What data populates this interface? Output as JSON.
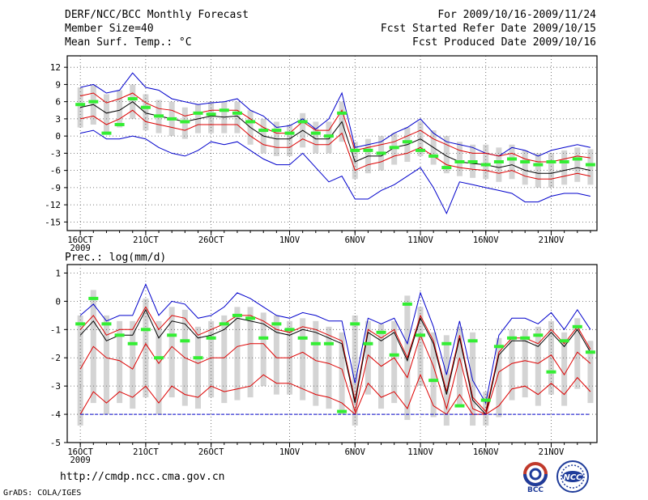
{
  "header": {
    "title": "DERF/NCC/BCC Monthly Forecast",
    "member_size": "Member Size=40",
    "variable": "Mean Surf. Temp.: °C",
    "period": "For 2009/10/16-2009/11/24",
    "fcst_started": "Fcst Started Refer Date 2009/10/15",
    "fcst_produced": "Fcst Produced Date 2009/10/16"
  },
  "footer": {
    "url": "http://cmdp.ncc.cma.gov.cn",
    "grads": "GrADS: COLA/IGES",
    "logo1_text": "BCC",
    "logo2_text": "NCC"
  },
  "colors": {
    "max_min": "#0000cc",
    "percentile": "#dd0000",
    "mean": "#000000",
    "observed": "#33ee33",
    "box": "#d4d4d4",
    "grid": "#555555"
  },
  "chart_data": [
    {
      "type": "line",
      "title": "Mean Surf. Temp.: °C",
      "x_tick_labels": [
        "16OCT",
        "21OCT",
        "26OCT",
        "1NOV",
        "6NOV",
        "11NOV",
        "16NOV",
        "21NOV"
      ],
      "x_tick_days": [
        1,
        6,
        11,
        17,
        22,
        27,
        32,
        37
      ],
      "x_year_label": "2009",
      "y_ticks": [
        12,
        9,
        6,
        3,
        0,
        -3,
        -6,
        -9,
        -12,
        -15
      ],
      "ylim": [
        -16.5,
        14
      ],
      "xlim": [
        0,
        40.5
      ],
      "days": [
        1,
        2,
        3,
        4,
        5,
        6,
        7,
        8,
        9,
        10,
        11,
        12,
        13,
        14,
        15,
        16,
        17,
        18,
        19,
        20,
        21,
        22,
        23,
        24,
        25,
        26,
        27,
        28,
        29,
        30,
        31,
        32,
        33,
        34,
        35,
        36,
        37,
        38,
        39,
        40
      ],
      "series": [
        {
          "name": "max",
          "values": [
            8.5,
            9.0,
            7.5,
            8.0,
            11.0,
            8.5,
            8.0,
            6.5,
            6.0,
            5.5,
            5.8,
            6.0,
            6.5,
            4.5,
            3.5,
            1.5,
            1.8,
            3.0,
            1.2,
            3.0,
            7.5,
            -2.0,
            -1.5,
            -1.0,
            0.5,
            1.5,
            3.0,
            0.5,
            -1.0,
            -1.5,
            -2.0,
            -3.0,
            -3.5,
            -2.0,
            -2.5,
            -3.5,
            -2.5,
            -2.0,
            -1.5,
            -2.0
          ]
        },
        {
          "name": "p90",
          "values": [
            7.0,
            7.5,
            5.8,
            6.5,
            7.5,
            5.8,
            4.8,
            4.5,
            3.5,
            4.0,
            4.5,
            4.5,
            4.5,
            3.0,
            1.5,
            0.5,
            0.5,
            2.5,
            1.0,
            1.0,
            4.5,
            -2.5,
            -2.0,
            -1.5,
            -1.0,
            0.0,
            1.0,
            -0.5,
            -1.5,
            -2.5,
            -3.0,
            -3.0,
            -3.5,
            -3.0,
            -4.0,
            -4.5,
            -4.5,
            -4.0,
            -3.5,
            -3.8
          ]
        },
        {
          "name": "mean",
          "values": [
            5.0,
            5.5,
            4.0,
            4.5,
            6.0,
            4.0,
            3.5,
            3.0,
            2.5,
            3.0,
            3.5,
            3.3,
            3.5,
            1.5,
            0.0,
            -0.5,
            -0.5,
            1.0,
            -0.5,
            -0.5,
            2.5,
            -4.5,
            -3.5,
            -3.5,
            -2.0,
            -1.5,
            -0.5,
            -2.0,
            -3.5,
            -4.5,
            -4.8,
            -5.0,
            -5.5,
            -5.0,
            -6.0,
            -6.5,
            -6.5,
            -6.0,
            -5.5,
            -6.0
          ]
        },
        {
          "name": "p10",
          "values": [
            3.0,
            3.5,
            2.0,
            3.0,
            4.5,
            2.5,
            2.0,
            1.5,
            1.0,
            2.0,
            2.0,
            2.0,
            2.0,
            0.0,
            -1.5,
            -2.0,
            -2.0,
            -0.5,
            -1.5,
            -1.5,
            0.5,
            -6.0,
            -5.0,
            -4.5,
            -3.5,
            -3.0,
            -2.0,
            -3.5,
            -5.0,
            -5.5,
            -5.8,
            -6.0,
            -6.5,
            -6.0,
            -7.0,
            -7.5,
            -7.5,
            -7.0,
            -6.5,
            -7.0
          ]
        },
        {
          "name": "min",
          "values": [
            0.5,
            1.0,
            -0.5,
            -0.5,
            0.0,
            -0.5,
            -2.0,
            -3.0,
            -3.5,
            -2.5,
            -1.0,
            -1.5,
            -1.0,
            -2.5,
            -4.0,
            -5.0,
            -5.0,
            -3.0,
            -5.5,
            -8.0,
            -7.0,
            -11.0,
            -11.0,
            -9.5,
            -8.5,
            -7.0,
            -5.5,
            -9.0,
            -13.5,
            -8.0,
            -8.5,
            -9.0,
            -9.5,
            -10.0,
            -11.5,
            -11.5,
            -10.5,
            -10.0,
            -10.0,
            -10.5
          ]
        },
        {
          "name": "observed",
          "values": [
            5.5,
            6.0,
            0.5,
            2.0,
            6.5,
            5.0,
            3.5,
            3.0,
            2.5,
            4.0,
            3.8,
            4.5,
            4.0,
            2.5,
            1.0,
            1.0,
            0.5,
            2.5,
            0.5,
            0.0,
            4.0,
            -2.5,
            -2.5,
            -3.0,
            -2.0,
            -1.0,
            -2.5,
            -3.5,
            -5.5,
            -4.5,
            -4.5,
            -5.0,
            -4.5,
            -4.0,
            -4.5,
            -5.0,
            -4.5,
            -4.5,
            -4.0,
            -5.0
          ]
        }
      ]
    },
    {
      "type": "line",
      "title": "Prec.: log(mm/d)",
      "x_tick_labels": [
        "16OCT",
        "21OCT",
        "26OCT",
        "1NOV",
        "6NOV",
        "11NOV",
        "16NOV",
        "21NOV"
      ],
      "x_tick_days": [
        1,
        6,
        11,
        17,
        22,
        27,
        32,
        37
      ],
      "x_year_label": "2009",
      "y_ticks": [
        1,
        0,
        -1,
        -2,
        -3,
        -4,
        -5
      ],
      "ylim": [
        -5,
        1.3
      ],
      "xlim": [
        0,
        40.5
      ],
      "days": [
        1,
        2,
        3,
        4,
        5,
        6,
        7,
        8,
        9,
        10,
        11,
        12,
        13,
        14,
        15,
        16,
        17,
        18,
        19,
        20,
        21,
        22,
        23,
        24,
        25,
        26,
        27,
        28,
        29,
        30,
        31,
        32,
        33,
        34,
        35,
        36,
        37,
        38,
        39,
        40
      ],
      "series": [
        {
          "name": "max",
          "values": [
            -0.5,
            -0.1,
            -0.7,
            -0.5,
            -0.5,
            0.6,
            -0.5,
            0.0,
            -0.1,
            -0.6,
            -0.5,
            -0.2,
            0.3,
            0.1,
            -0.2,
            -0.5,
            -0.6,
            -0.4,
            -0.5,
            -0.7,
            -0.7,
            -2.9,
            -0.6,
            -0.8,
            -0.6,
            -1.5,
            0.3,
            -0.9,
            -2.6,
            -0.7,
            -2.8,
            -3.6,
            -1.2,
            -0.6,
            -0.6,
            -0.8,
            -0.4,
            -1.0,
            -0.3,
            -1.0
          ]
        },
        {
          "name": "p90",
          "values": [
            -1.0,
            -0.5,
            -1.2,
            -1.0,
            -1.0,
            -0.2,
            -1.0,
            -0.5,
            -0.6,
            -1.2,
            -1.0,
            -0.8,
            -0.5,
            -0.5,
            -0.7,
            -1.0,
            -1.1,
            -0.9,
            -1.0,
            -1.2,
            -1.4,
            -3.5,
            -1.0,
            -1.3,
            -1.0,
            -2.0,
            -0.5,
            -1.4,
            -3.2,
            -1.2,
            -3.4,
            -3.9,
            -1.8,
            -1.3,
            -1.3,
            -1.5,
            -1.0,
            -1.5,
            -0.9,
            -1.7
          ]
        },
        {
          "name": "mean",
          "values": [
            -1.2,
            -0.7,
            -1.4,
            -1.2,
            -1.2,
            -0.3,
            -1.3,
            -0.7,
            -0.8,
            -1.3,
            -1.2,
            -1.0,
            -0.6,
            -0.7,
            -0.8,
            -1.1,
            -1.2,
            -1.0,
            -1.1,
            -1.3,
            -1.5,
            -3.6,
            -1.1,
            -1.4,
            -1.1,
            -2.1,
            -0.6,
            -1.5,
            -3.3,
            -1.3,
            -3.5,
            -4.0,
            -1.9,
            -1.4,
            -1.4,
            -1.6,
            -1.1,
            -1.6,
            -1.0,
            -1.8
          ]
        },
        {
          "name": "p50",
          "values": [
            -2.4,
            -1.6,
            -2.0,
            -2.1,
            -2.4,
            -1.5,
            -2.2,
            -1.6,
            -2.0,
            -2.2,
            -2.0,
            -2.0,
            -1.6,
            -1.5,
            -1.5,
            -2.0,
            -2.0,
            -1.8,
            -2.1,
            -2.2,
            -2.4,
            -3.9,
            -1.9,
            -2.3,
            -2.0,
            -2.7,
            -1.2,
            -2.3,
            -3.8,
            -2.0,
            -3.8,
            -4.0,
            -2.5,
            -2.2,
            -2.1,
            -2.2,
            -1.9,
            -2.6,
            -1.8,
            -2.2
          ]
        },
        {
          "name": "p10",
          "values": [
            -4.0,
            -3.2,
            -3.6,
            -3.2,
            -3.4,
            -3.0,
            -3.6,
            -3.0,
            -3.3,
            -3.4,
            -3.0,
            -3.2,
            -3.1,
            -3.0,
            -2.6,
            -2.9,
            -2.9,
            -3.1,
            -3.3,
            -3.4,
            -3.6,
            -4.0,
            -2.9,
            -3.4,
            -3.2,
            -3.8,
            -2.6,
            -3.7,
            -4.0,
            -3.3,
            -4.0,
            -4.0,
            -3.7,
            -3.1,
            -3.0,
            -3.3,
            -2.9,
            -3.3,
            -2.7,
            -3.2
          ]
        },
        {
          "name": "min",
          "values": [
            -4.0,
            -4.0,
            -4.0,
            -4.0,
            -4.0,
            -4.0,
            -4.0,
            -4.0,
            -4.0,
            -4.0,
            -4.0,
            -4.0,
            -4.0,
            -4.0,
            -4.0,
            -4.0,
            -4.0,
            -4.0,
            -4.0,
            -4.0,
            -4.0,
            -4.0,
            -4.0,
            -4.0,
            -4.0,
            -4.0,
            -4.0,
            -4.0,
            -4.0,
            -4.0,
            -4.0,
            -4.0,
            -4.0,
            -4.0,
            -4.0,
            -4.0,
            -4.0,
            -4.0,
            -4.0,
            -4.0
          ]
        },
        {
          "name": "observed",
          "values": [
            -0.8,
            0.1,
            -0.8,
            -1.2,
            -1.5,
            -1.0,
            -2.0,
            -1.2,
            -1.4,
            -2.0,
            -1.3,
            -0.8,
            -0.5,
            -0.6,
            -1.3,
            -0.8,
            -1.0,
            -1.3,
            -1.5,
            -1.5,
            -3.9,
            -0.8,
            -1.5,
            -1.1,
            -1.9,
            -0.1,
            -1.2,
            -2.8,
            -1.5,
            -3.7,
            -1.4,
            -3.5,
            -1.6,
            -1.3,
            -1.3,
            -1.2,
            -2.5,
            -1.4,
            -0.9,
            -1.8
          ]
        }
      ]
    }
  ]
}
